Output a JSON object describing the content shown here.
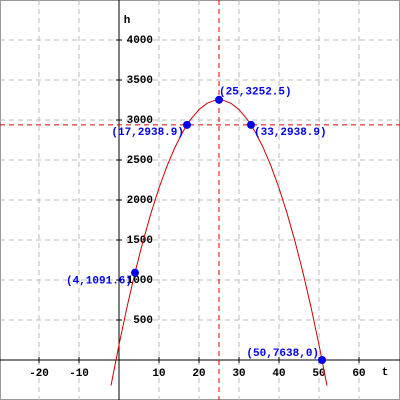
{
  "chart_data": {
    "type": "function-plot",
    "x_label": "t",
    "y_label": "h",
    "xlim": [
      -29.75,
      70.25
    ],
    "ylim": [
      -500,
      4500
    ],
    "xticks": [
      -20,
      -10,
      10,
      20,
      30,
      40,
      50,
      60
    ],
    "yticks": [
      500,
      1000,
      1500,
      2000,
      2500,
      3000,
      3500,
      4000
    ],
    "grid": true,
    "series": [
      {
        "type": "line",
        "color": "#cc0000",
        "x": [
          -2,
          0,
          2,
          4,
          6,
          8,
          10,
          12,
          14,
          16,
          18,
          20,
          22,
          24,
          25,
          26,
          28,
          30,
          32,
          34,
          36,
          38,
          40,
          42,
          44,
          46,
          48,
          50,
          52
        ],
        "values": [
          -319.6,
          190,
          660.4,
          1091.6,
          1483.6,
          1836.4,
          2150,
          2424.4,
          2659.6,
          2855.6,
          3012.4,
          3130,
          3208.4,
          3247.6,
          3252.5,
          3247.6,
          3208.4,
          3130,
          3012.4,
          2855.6,
          2659.6,
          2424.4,
          2150,
          1836.4,
          1483.6,
          1091.6,
          660.4,
          190,
          -319.6
        ]
      },
      {
        "type": "scatter",
        "color": "#0000ee",
        "x": [
          4,
          17,
          25,
          33,
          50.7638
        ],
        "values": [
          1091.6,
          2938.9,
          3252.5,
          2938.9,
          0
        ],
        "value_labels": [
          "(4,1091.6)",
          "(17,2938.9)",
          "(25,3252.5)",
          "(33,2938.9)",
          "(50,7638,0)"
        ]
      }
    ],
    "vlines": [
      25
    ],
    "hlines": [
      2938.9
    ],
    "ref_color": "#dd0000"
  }
}
